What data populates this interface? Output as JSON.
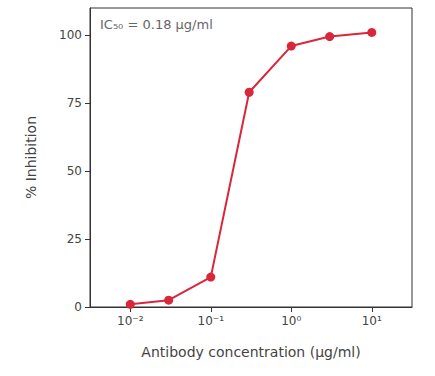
{
  "chart_data": {
    "type": "line",
    "annotation": "IC₅₀ = 0.18 µg/ml",
    "x_label": "Antibody concentration (µg/ml)",
    "y_label": "% Inhibition",
    "x": [
      0.01,
      0.03,
      0.1,
      0.3,
      1,
      3,
      10
    ],
    "values": [
      1,
      2.5,
      11,
      79,
      96,
      99.5,
      101
    ],
    "color": "#d9263b",
    "marker": "circle",
    "log": "x",
    "grid": false,
    "xlim": [
      0.00316,
      31.6
    ],
    "xticks": [
      {
        "value": 0.01,
        "label": "10⁻²"
      },
      {
        "value": 0.1,
        "label": "10⁻¹"
      },
      {
        "value": 1,
        "label": "10⁰"
      },
      {
        "value": 10,
        "label": "10¹"
      }
    ],
    "ylim": [
      0,
      110
    ],
    "yticks": [
      0,
      25,
      50,
      75,
      100
    ]
  }
}
